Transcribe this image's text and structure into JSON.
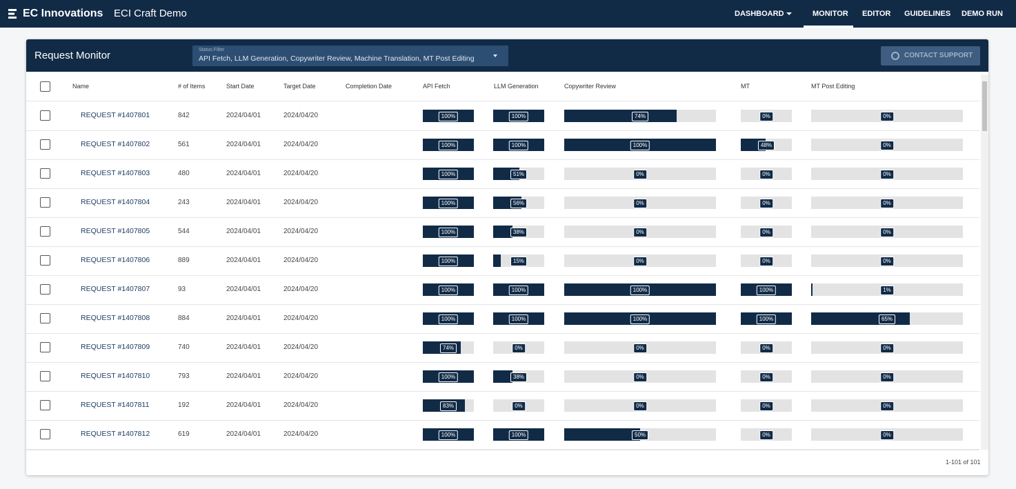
{
  "nav": {
    "brand": "EC Innovations",
    "app": "ECI Craft Demo",
    "links": [
      "DASHBOARD",
      "MONITOR",
      "EDITOR",
      "GUIDELINES",
      "DEMO RUN"
    ]
  },
  "panel": {
    "title": "Request Monitor",
    "filter": {
      "label": "Status Filter",
      "value": "API Fetch, LLM Generation, Copywriter Review, Machine Translation, MT Post Editing"
    },
    "button": "CONTACT SUPPORT"
  },
  "table": {
    "columns": [
      "Name",
      "# of Items",
      "Start Date",
      "Target Date",
      "Completion Date",
      "API Fetch",
      "LLM Generation",
      "Copywriter Review",
      "MT",
      "MT Post Editing"
    ],
    "rows": [
      {
        "name": "REQUEST #1407801",
        "items": 842,
        "start": "2024/04/01",
        "target": "2024/04/20",
        "progress": [
          {
            "value": 100,
            "label": "100%"
          },
          {
            "value": 100,
            "label": "100%"
          },
          {
            "value": 74,
            "label": "74%"
          },
          {
            "value": 0,
            "label": "0%"
          },
          {
            "value": 0,
            "label": "0%"
          }
        ]
      },
      {
        "name": "REQUEST #1407802",
        "items": 561,
        "start": "2024/04/01",
        "target": "2024/04/20",
        "progress": [
          {
            "value": 100,
            "label": "100%"
          },
          {
            "value": 100,
            "label": "100%"
          },
          {
            "value": 100,
            "label": "100%"
          },
          {
            "value": 48,
            "label": "48%"
          },
          {
            "value": 0,
            "label": "0%"
          }
        ]
      },
      {
        "name": "REQUEST #1407803",
        "items": 480,
        "start": "2024/04/01",
        "target": "2024/04/20",
        "progress": [
          {
            "value": 100,
            "label": "100%"
          },
          {
            "value": 51,
            "label": "51%"
          },
          {
            "value": 0,
            "label": "0%"
          },
          {
            "value": 0,
            "label": "0%"
          },
          {
            "value": 0,
            "label": "0%"
          }
        ]
      },
      {
        "name": "REQUEST #1407804",
        "items": 243,
        "start": "2024/04/01",
        "target": "2024/04/20",
        "progress": [
          {
            "value": 100,
            "label": "100%"
          },
          {
            "value": 56,
            "label": "56%"
          },
          {
            "value": 0,
            "label": "0%"
          },
          {
            "value": 0,
            "label": "0%"
          },
          {
            "value": 0,
            "label": "0%"
          }
        ]
      },
      {
        "name": "REQUEST #1407805",
        "items": 544,
        "start": "2024/04/01",
        "target": "2024/04/20",
        "progress": [
          {
            "value": 100,
            "label": "100%"
          },
          {
            "value": 38,
            "label": "38%"
          },
          {
            "value": 0,
            "label": "0%"
          },
          {
            "value": 0,
            "label": "0%"
          },
          {
            "value": 0,
            "label": "0%"
          }
        ]
      },
      {
        "name": "REQUEST #1407806",
        "items": 889,
        "start": "2024/04/01",
        "target": "2024/04/20",
        "progress": [
          {
            "value": 100,
            "label": "100%"
          },
          {
            "value": 15,
            "label": "15%"
          },
          {
            "value": 0,
            "label": "0%"
          },
          {
            "value": 0,
            "label": "0%"
          },
          {
            "value": 0,
            "label": "0%"
          }
        ]
      },
      {
        "name": "REQUEST #1407807",
        "items": 93,
        "start": "2024/04/01",
        "target": "2024/04/20",
        "progress": [
          {
            "value": 100,
            "label": "100%"
          },
          {
            "value": 100,
            "label": "100%"
          },
          {
            "value": 100,
            "label": "100%"
          },
          {
            "value": 100,
            "label": "100%"
          },
          {
            "value": 1,
            "label": "1%"
          }
        ]
      },
      {
        "name": "REQUEST #1407808",
        "items": 884,
        "start": "2024/04/01",
        "target": "2024/04/20",
        "progress": [
          {
            "value": 100,
            "label": "100%"
          },
          {
            "value": 100,
            "label": "100%"
          },
          {
            "value": 100,
            "label": "100%"
          },
          {
            "value": 100,
            "label": "100%"
          },
          {
            "value": 65,
            "label": "65%"
          }
        ]
      },
      {
        "name": "REQUEST #1407809",
        "items": 740,
        "start": "2024/04/01",
        "target": "2024/04/20",
        "progress": [
          {
            "value": 74,
            "label": "74%"
          },
          {
            "value": 0,
            "label": "0%"
          },
          {
            "value": 0,
            "label": "0%"
          },
          {
            "value": 0,
            "label": "0%"
          },
          {
            "value": 0,
            "label": "0%"
          }
        ]
      },
      {
        "name": "REQUEST #1407810",
        "items": 793,
        "start": "2024/04/01",
        "target": "2024/04/20",
        "progress": [
          {
            "value": 100,
            "label": "100%"
          },
          {
            "value": 38,
            "label": "38%"
          },
          {
            "value": 0,
            "label": "0%"
          },
          {
            "value": 0,
            "label": "0%"
          },
          {
            "value": 0,
            "label": "0%"
          }
        ]
      },
      {
        "name": "REQUEST #1407811",
        "items": 192,
        "start": "2024/04/01",
        "target": "2024/04/20",
        "progress": [
          {
            "value": 83,
            "label": "83%"
          },
          {
            "value": 0,
            "label": "0%"
          },
          {
            "value": 0,
            "label": "0%"
          },
          {
            "value": 0,
            "label": "0%"
          },
          {
            "value": 0,
            "label": "0%"
          }
        ]
      },
      {
        "name": "REQUEST #1407812",
        "items": 619,
        "start": "2024/04/01",
        "target": "2024/04/20",
        "progress": [
          {
            "value": 100,
            "label": "100%"
          },
          {
            "value": 100,
            "label": "100%"
          },
          {
            "value": 50,
            "label": "50%"
          },
          {
            "value": 0,
            "label": "0%"
          },
          {
            "value": 0,
            "label": "0%"
          }
        ]
      }
    ]
  },
  "footer": {
    "pagination": "1-101 of 101"
  }
}
